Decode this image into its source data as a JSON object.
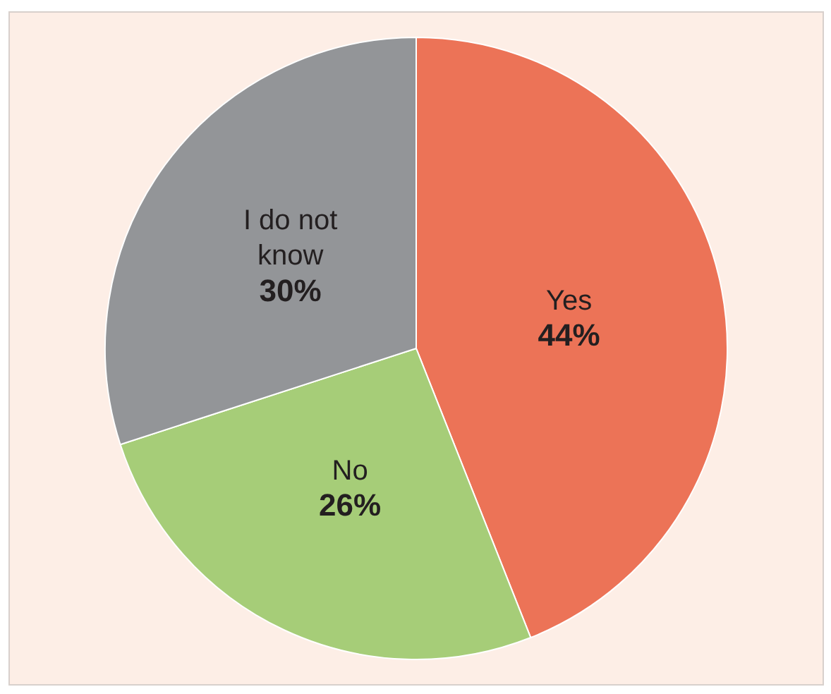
{
  "chart_data": {
    "type": "pie",
    "categories": [
      "Yes",
      "No",
      "I do not know"
    ],
    "values": [
      44,
      26,
      30
    ],
    "colors": [
      "#ec7357",
      "#a6cd78",
      "#939598"
    ],
    "value_labels": [
      "44%",
      "26%",
      "30%"
    ]
  }
}
